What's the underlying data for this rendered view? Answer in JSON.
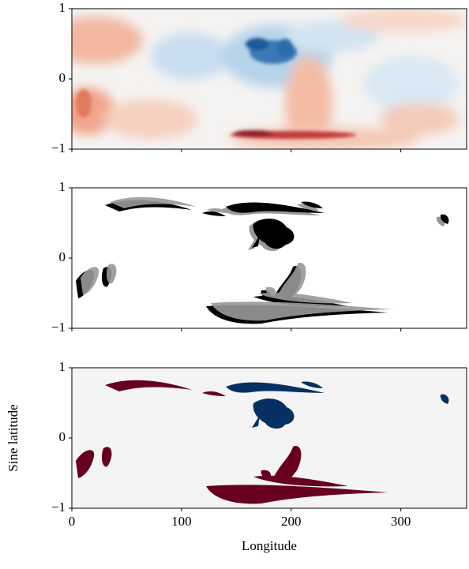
{
  "chart_data": [
    {
      "type": "heatmap",
      "xlim": [
        0,
        360
      ],
      "ylim": [
        -1,
        1
      ],
      "xticks": [
        0,
        100,
        200,
        300
      ],
      "yticks": [
        {
          "value": -1,
          "label": "−1"
        },
        0,
        1
      ]
    },
    {
      "type": "heatmap",
      "xlim": [
        0,
        360
      ],
      "ylim": [
        -1,
        1
      ],
      "xticks": [
        0,
        100,
        200,
        300
      ],
      "yticks": [
        {
          "value": -1,
          "label": "−1"
        },
        0,
        1
      ]
    },
    {
      "type": "heatmap",
      "xlim": [
        0,
        360
      ],
      "ylim": [
        -1,
        1
      ],
      "xticks": [
        0,
        100,
        200,
        300
      ],
      "yticks": [
        {
          "value": -1,
          "label": "−1"
        },
        0,
        1
      ],
      "xlabel": "Longitude",
      "ylabel": "Sine latitude",
      "xtick_labels": true
    }
  ]
}
